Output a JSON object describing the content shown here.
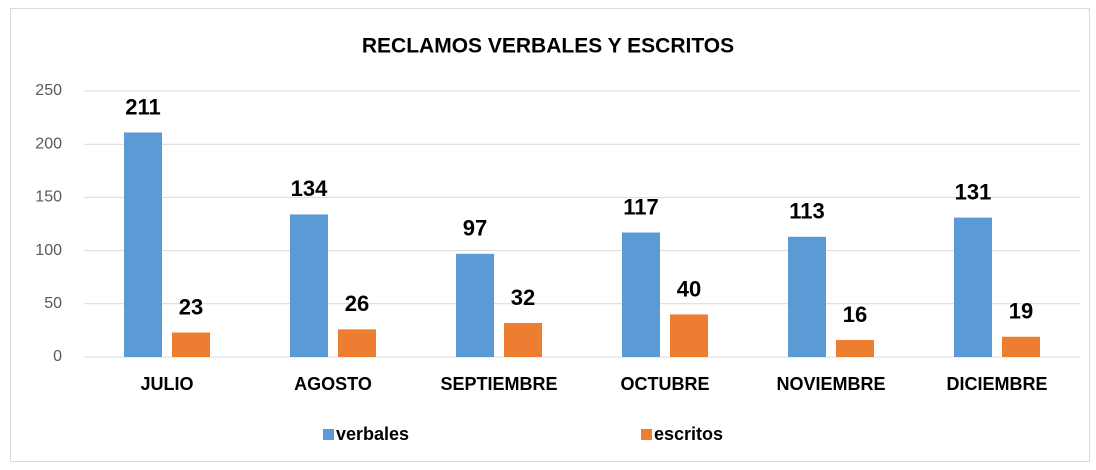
{
  "chart_data": {
    "type": "bar",
    "title": "RECLAMOS VERBALES Y ESCRITOS",
    "categories": [
      "JULIO",
      "AGOSTO",
      "SEPTIEMBRE",
      "OCTUBRE",
      "NOVIEMBRE",
      "DICIEMBRE"
    ],
    "series": [
      {
        "name": "verbales",
        "color": "#5b9bd5",
        "values": [
          211,
          134,
          97,
          117,
          113,
          131
        ]
      },
      {
        "name": "escritos",
        "color": "#ed7d31",
        "values": [
          23,
          26,
          32,
          40,
          16,
          19
        ]
      }
    ],
    "ylim": [
      0,
      250
    ],
    "yticks": [
      0,
      50,
      100,
      150,
      200,
      250
    ],
    "grid": true,
    "legend": "bottom"
  }
}
